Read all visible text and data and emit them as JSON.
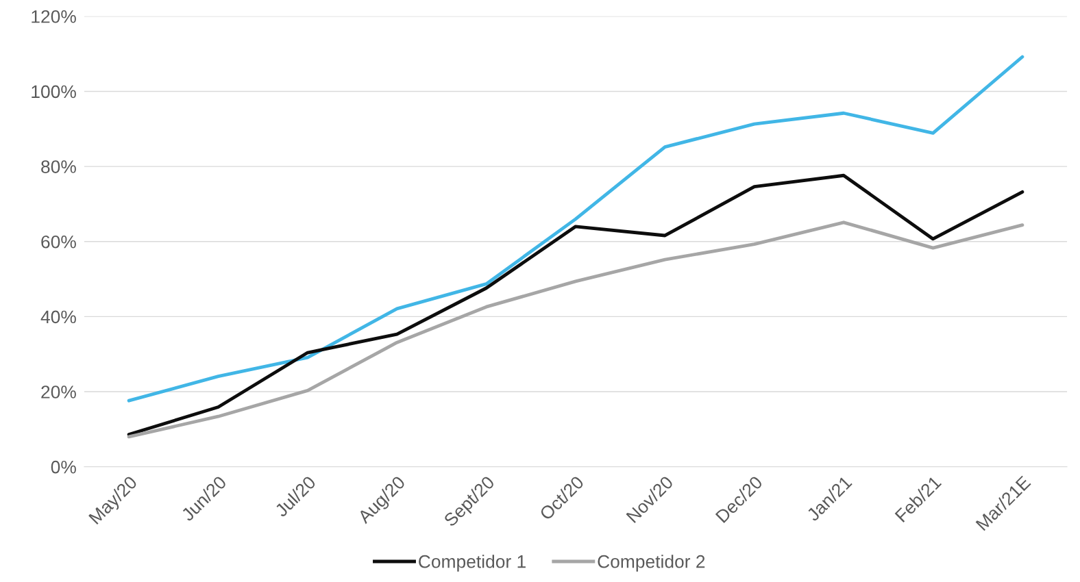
{
  "chart_data": {
    "type": "line",
    "categories": [
      "May/20",
      "Jun/20",
      "Jul/20",
      "Aug/20",
      "Sept/20",
      "Oct/20",
      "Nov/20",
      "Dec/20",
      "Jan/21",
      "Feb/21",
      "Mar/21E"
    ],
    "series": [
      {
        "color": "#41b6e6",
        "values": [
          17.6,
          24.1,
          29.1,
          42.1,
          48.7,
          66,
          85.2,
          91.3,
          94.2,
          88.9,
          109.2
        ]
      },
      {
        "name": "Competidor 1",
        "color": "#0d0d0d",
        "values": [
          8.6,
          15.9,
          30.4,
          35.3,
          47.6,
          64,
          61.6,
          74.6,
          77.6,
          60.7,
          73.2
        ]
      },
      {
        "name": "Competidor 2",
        "color": "#a6a6a6",
        "values": [
          8,
          13.4,
          20.3,
          33.1,
          42.6,
          49.4,
          55.2,
          59.3,
          65.1,
          58.3,
          64.4
        ]
      }
    ],
    "ylim": [
      0,
      120
    ],
    "yticks": [
      {
        "value": 0,
        "label": "0%"
      },
      {
        "value": 20,
        "label": "20%"
      },
      {
        "value": 40,
        "label": "40%"
      },
      {
        "value": 60,
        "label": "60%"
      },
      {
        "value": 80,
        "label": "80%"
      },
      {
        "value": 100,
        "label": "100%"
      },
      {
        "value": 120,
        "label": "120%"
      }
    ],
    "grid": "y",
    "legend": "bottom",
    "marker": "none",
    "line_style": "solid"
  }
}
